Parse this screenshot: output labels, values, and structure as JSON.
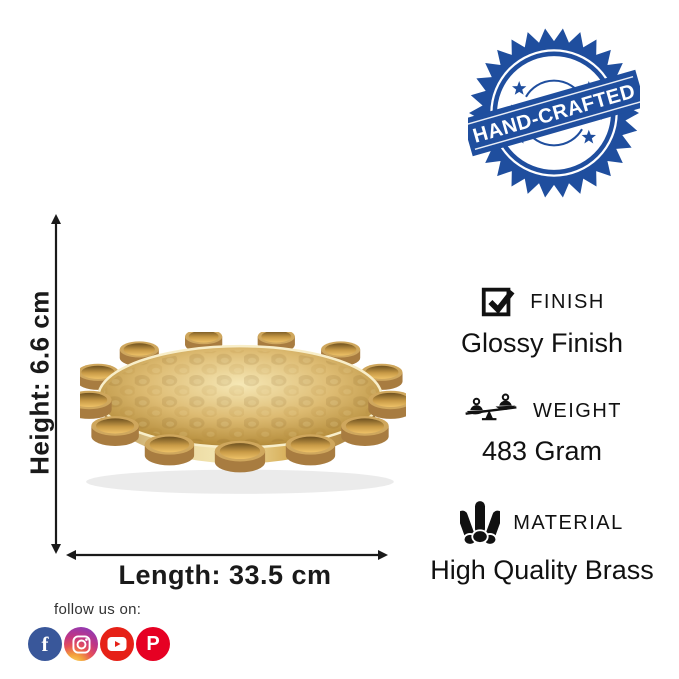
{
  "badge": {
    "text": "HAND-CRAFTED",
    "color": "#1f4e9e"
  },
  "dimensions": {
    "height": "Height: 6.6 cm",
    "length": "Length: 33.5 cm"
  },
  "features": {
    "finish": {
      "label": "FINISH",
      "value": "Glossy Finish",
      "icon": "check-square-icon"
    },
    "weight": {
      "label": "WEIGHT",
      "value": "483 Gram",
      "icon": "balance-scale-icon"
    },
    "material": {
      "label": "MATERIAL",
      "value": "High Quality Brass",
      "icon": "metal-rods-icon"
    }
  },
  "social": {
    "heading": "follow us on:",
    "icons": [
      {
        "name": "facebook-icon",
        "glyph": "f",
        "color": "#39579a"
      },
      {
        "name": "instagram-icon",
        "glyph": "",
        "color": "#c13584"
      },
      {
        "name": "youtube-icon",
        "glyph": "",
        "color": "#e62117"
      },
      {
        "name": "pinterest-icon",
        "glyph": "P",
        "color": "#e60023"
      }
    ]
  },
  "product": {
    "colors": {
      "gold_light": "#f4e7b4",
      "gold": "#d2a84f",
      "gold_dark": "#8a6328",
      "arrow": "#1a1a1a"
    }
  }
}
